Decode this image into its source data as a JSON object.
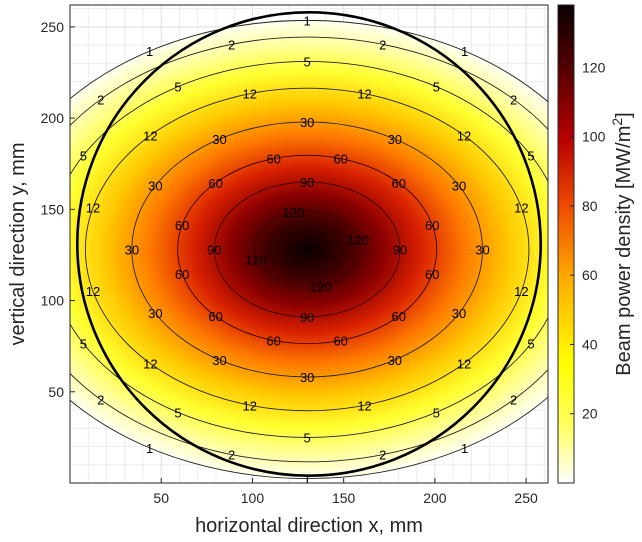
{
  "chart_data": {
    "type": "heatmap",
    "title": "",
    "xlabel": "horizontal direction x, mm",
    "ylabel": "vertical direction y, mm",
    "xlim": [
      0,
      262
    ],
    "ylim": [
      0,
      262
    ],
    "x_ticks": [
      50,
      100,
      150,
      200,
      250
    ],
    "y_ticks": [
      50,
      100,
      150,
      200,
      250
    ],
    "grid": true,
    "colorbar": {
      "label_main": "Beam power density [MW/m",
      "label_sup": "2",
      "label_close": "]",
      "range": [
        0,
        138
      ],
      "ticks": [
        20,
        40,
        60,
        80,
        100,
        120
      ],
      "colormap": "hot (white-yellow-red-black)",
      "stops": [
        "#ffffff",
        "#ffff3a",
        "#ffb000",
        "#e73000",
        "#a00000",
        "#4a0000",
        "#0a0000"
      ]
    },
    "beam": {
      "center_x": 130,
      "center_y": 128,
      "peak": 138,
      "sigma_x": 55,
      "sigma_y": 40
    },
    "aperture_circle": {
      "center_x": 131,
      "center_y": 131,
      "radius": 127
    },
    "contour_levels": [
      1,
      2,
      5,
      12,
      30,
      60,
      90,
      120
    ]
  }
}
